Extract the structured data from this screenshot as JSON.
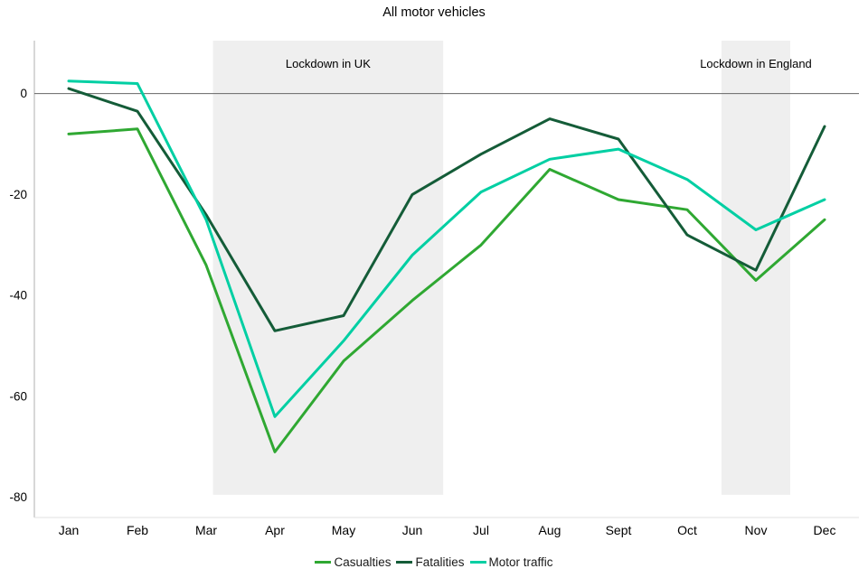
{
  "chart_data": {
    "type": "line",
    "title": "All motor vehicles",
    "categories": [
      "Jan",
      "Feb",
      "Mar",
      "Apr",
      "May",
      "Jun",
      "Jul",
      "Aug",
      "Sept",
      "Oct",
      "Nov",
      "Dec"
    ],
    "y_ticks": [
      0,
      -20,
      -40,
      -60,
      -80
    ],
    "ylim": [
      -84,
      10.5
    ],
    "grid": false,
    "zero_line": true,
    "legend_position": "bottom",
    "series": [
      {
        "name": "Casualties",
        "color": "#2fa832",
        "values": [
          -8,
          -7,
          -34,
          -71,
          -53,
          -41,
          -30,
          -15,
          -21,
          -23,
          -37,
          -25
        ]
      },
      {
        "name": "Fatalities",
        "color": "#145c38",
        "values": [
          1,
          -3.5,
          -24,
          -47,
          -44,
          -20,
          -12,
          -5,
          -9,
          -28,
          -35,
          -6.5
        ]
      },
      {
        "name": "Motor traffic",
        "color": "#00cfa3",
        "values": [
          2.5,
          2,
          -25,
          -64,
          -49,
          -32,
          -19.5,
          -13,
          -11,
          -17,
          -27,
          -21
        ]
      }
    ],
    "annotations": [
      {
        "label": "Lockdown in UK",
        "x_start": 2.1,
        "x_end": 5.45
      },
      {
        "label": "Lockdown in England",
        "x_start": 9.5,
        "x_end": 10.5
      }
    ]
  },
  "colors": {
    "annotation_fill": "#efefef",
    "zero_line": "#666666",
    "left_axis": "#b0b0b0",
    "bottom_axis": "#e0e0e0",
    "text": "#000000"
  }
}
